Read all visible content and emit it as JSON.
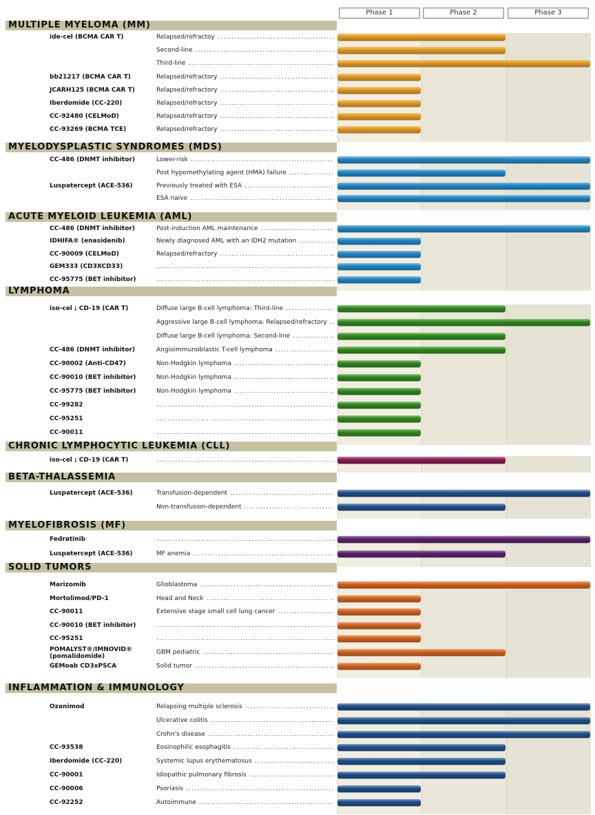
{
  "phases": [
    "Phase 1",
    "Phase 2",
    "Phase 3"
  ],
  "colors": {
    "orange": "#e59a1d",
    "blue": "#1e86c8",
    "green": "#2e8a1c",
    "magenta": "#8c1a57",
    "navy": "#1c4f8c",
    "purple": "#5a1f6e",
    "rust": "#d4611a"
  },
  "chart_data": {
    "type": "table",
    "columns": [
      "Phase 1",
      "Phase 2",
      "Phase 3"
    ],
    "sections": [
      {
        "name": "MULTIPLE MYELOMA (MM)",
        "color": "orange",
        "rows": [
          {
            "drug": "ide-cel (BCMA CAR T)",
            "indication": "Relapsed/refractoy",
            "phase": 2
          },
          {
            "drug": "",
            "indication": "Second-line",
            "phase": 2
          },
          {
            "drug": "",
            "indication": "Third-line",
            "phase": 3
          },
          {
            "drug": "bb21217 (BCMA CAR T)",
            "indication": "Relapsed/refractory",
            "phase": 1
          },
          {
            "drug": "JCARH125 (BCMA CAR T)",
            "indication": "Relapsed/refractory",
            "phase": 1
          },
          {
            "drug": "Iberdomide (CC-220)",
            "indication": "Relapsed/refractory",
            "phase": 1
          },
          {
            "drug": "CC-92480 (CELMoD)",
            "indication": "Relapsed/refractory",
            "phase": 1
          },
          {
            "drug": "CC-93269 (BCMA TCE)",
            "indication": "Relapsed/refractory",
            "phase": 1
          }
        ]
      },
      {
        "name": "MYELODYSPLASTIC SYNDROMES (MDS)",
        "color": "blue",
        "rows": [
          {
            "drug": "CC-486 (DNMT inhibitor)",
            "indication": "Lower-risk",
            "phase": 3
          },
          {
            "drug": "",
            "indication": "Post hypomethylating agent (HMA) failure",
            "phase": 2
          },
          {
            "drug": "Luspatercept (ACE-536)",
            "indication": "Previously treated with ESA",
            "phase": 3
          },
          {
            "drug": "",
            "indication": "ESA naive",
            "phase": 3
          }
        ]
      },
      {
        "name": "ACUTE MYELOID LEUKEMIA (AML)",
        "color": "blue",
        "rows": [
          {
            "drug": "CC-486 (DNMT inhibitor)",
            "indication": "Post-induction AML maintenance",
            "phase": 3
          },
          {
            "drug": "IDHIFA® (enasidenib)",
            "indication": "Newly diagnosed AML with an IDH2 mutation",
            "phase": 1
          },
          {
            "drug": "CC-90009 (CELMoD)",
            "indication": "Relapsed/refractory",
            "phase": 1
          },
          {
            "drug": "GEM333 (CD3XCD33)",
            "indication": "",
            "phase": 1
          },
          {
            "drug": "CC-95775 (BET inhibitor)",
            "indication": "",
            "phase": 1
          }
        ]
      },
      {
        "name": "LYMPHOMA",
        "color": "green",
        "rows": [
          {
            "drug": "iso-cel ; CD-19 (CAR T)",
            "indication": "Diffuse large B-cell lymphoma: Third-line",
            "phase": 2
          },
          {
            "drug": "",
            "indication": "Aggressive large B-cell lymphoma: Relapsed/refractory",
            "phase": 3
          },
          {
            "drug": "",
            "indication": "Diffuse large B-cell lymphoma: Second-line",
            "phase": 2
          },
          {
            "drug": "CC-486 (DNMT inhibitor)",
            "indication": "Angioimmunoblastic T-cell lymphoma",
            "phase": 2
          },
          {
            "drug": "CC-90002 (Anti-CD47)",
            "indication": "Non-Hodgkin lymphoma",
            "phase": 1
          },
          {
            "drug": "CC-90010 (BET inhibitor)",
            "indication": "Non-Hodgkin lymphoma",
            "phase": 1
          },
          {
            "drug": "CC-95775 (BET inhibitor)",
            "indication": "Non-Hodgkin lymphoma",
            "phase": 1
          },
          {
            "drug": "CC-99282",
            "indication": "",
            "phase": 1
          },
          {
            "drug": "CC-95251",
            "indication": "",
            "phase": 1
          },
          {
            "drug": "CC-90011",
            "indication": "",
            "phase": 1
          }
        ]
      },
      {
        "name": "CHRONIC LYMPHOCYTIC LEUKEMIA (CLL)",
        "color": "magenta",
        "rows": [
          {
            "drug": "iso-cel ; CD-19 (CAR T)",
            "indication": "",
            "phase": 2
          }
        ]
      },
      {
        "name": "BETA-THALASSEMIA",
        "color": "navy",
        "rows": [
          {
            "drug": "Luspatercept (ACE-536)",
            "indication": "Transfusion-dependent",
            "phase": 3
          },
          {
            "drug": "",
            "indication": "Non-transfusion-dependent",
            "phase": 2
          }
        ]
      },
      {
        "name": "MYELOFIBROSIS (MF)",
        "color": "purple",
        "rows": [
          {
            "drug": "Fedratinib",
            "indication": "",
            "phase": 3
          },
          {
            "drug": "Luspatercept (ACE-536)",
            "indication": "MF anemia",
            "phase": 2
          }
        ]
      },
      {
        "name": "SOLID TUMORS",
        "color": "rust",
        "rows": [
          {
            "drug": "Marizomib",
            "indication": "Glioblastoma",
            "phase": 3
          },
          {
            "drug": "Mortolimod/PD-1",
            "indication": "Head and Neck",
            "phase": 1
          },
          {
            "drug": "CC-90011",
            "indication": "Extensive stage small cell lung cancer",
            "phase": 1
          },
          {
            "drug": "CC-90010 (BET inhibitor)",
            "indication": "",
            "phase": 1
          },
          {
            "drug": "CC-95251",
            "indication": "",
            "phase": 1
          },
          {
            "drug": "POMALYST®/IMNOVID® (pomalidomide)",
            "indication": "GBM pediatric",
            "phase": 2
          },
          {
            "drug": "GEMoab CD3xPSCA",
            "indication": "Solid tumor",
            "phase": 1
          }
        ]
      },
      {
        "name": "INFLAMMATION & IMMUNOLOGY",
        "color": "navy",
        "rows": [
          {
            "drug": "Ozanimod",
            "indication": "Relapsing multiple sclerosis",
            "phase": 3
          },
          {
            "drug": "",
            "indication": "Ulcerative colitis",
            "phase": 3
          },
          {
            "drug": "",
            "indication": "Crohn's disease",
            "phase": 3
          },
          {
            "drug": "CC-93538",
            "indication": "Eosinophilic esophagitis",
            "phase": 2
          },
          {
            "drug": "Iberdomide (CC-220)",
            "indication": "Systemic lupus erythematosus",
            "phase": 2
          },
          {
            "drug": "CC-90001",
            "indication": "Idiopathic pulmonary fibrosis",
            "phase": 2
          },
          {
            "drug": "CC-90006",
            "indication": "Psoriasis",
            "phase": 1
          },
          {
            "drug": "CC-92252",
            "indication": "Autoimmune",
            "phase": 1
          }
        ]
      }
    ]
  }
}
